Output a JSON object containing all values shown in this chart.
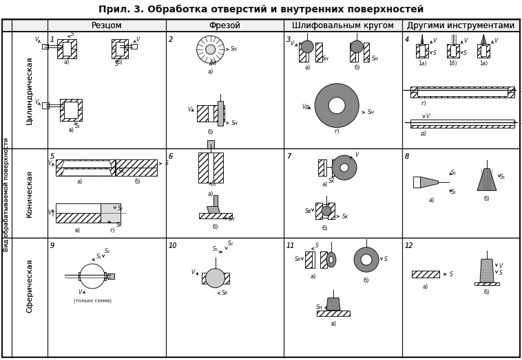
{
  "title": "Прил. 3. Обработка отверстий и внутренних поверхностей",
  "col_headers": [
    "Резцом",
    "Фрезой",
    "Шлифовальным кругом",
    "Другими инструментами"
  ],
  "row_headers_inner": [
    "Цилиндрическая",
    "Коническая",
    "Сферическая"
  ],
  "row_label_outer": "Вид обрабатываемой поверхности",
  "cell_numbers": [
    [
      "1",
      "2",
      "3",
      "4"
    ],
    [
      "5",
      "6",
      "7",
      "8"
    ],
    [
      "9",
      "10",
      "11",
      "12"
    ]
  ],
  "lc": "#111111",
  "hatch_fc": "#cccccc",
  "grind_fc": "#888888",
  "fig_w": 7.58,
  "fig_h": 5.24,
  "dpi": 100,
  "title_fs": 10,
  "hdr_fs": 8.5,
  "row_fs": 8,
  "num_fs": 7,
  "label_fs": 5.5
}
